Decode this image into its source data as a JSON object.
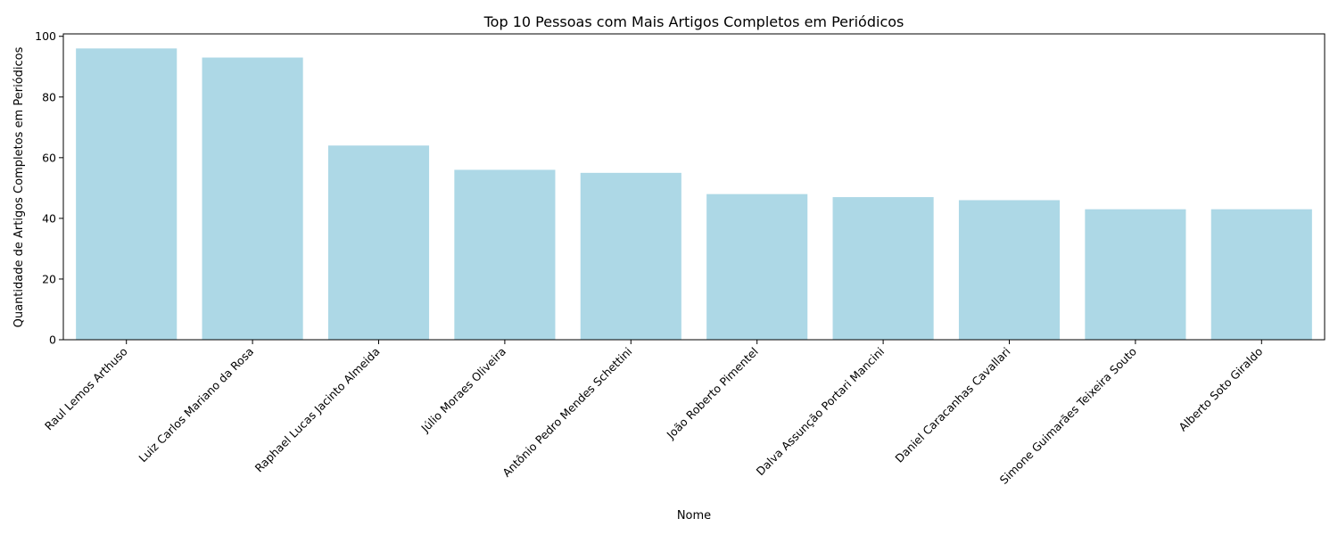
{
  "chart_data": {
    "type": "bar",
    "title": "Top 10 Pessoas com Mais Artigos Completos em Periódicos",
    "xlabel": "Nome",
    "ylabel": "Quantidade de Artigos Completos em Periódicos",
    "categories": [
      "Raul Lemos Arthuso",
      "Luiz Carlos Mariano da Rosa",
      "Raphael Lucas Jacinto Almeida",
      "Júlio Moraes Oliveira",
      "Antônio Pedro Mendes Schettini",
      "João Roberto Pimentel",
      "Dalva Assunção Portari Mancini",
      "Daniel Caracanhas Cavallari",
      "Simone Guimarães Teixeira Souto",
      "Alberto Soto Giraldo"
    ],
    "values": [
      96,
      93,
      64,
      56,
      55,
      48,
      47,
      46,
      43,
      43
    ],
    "ylim": [
      0,
      100.8
    ],
    "yticks": [
      0,
      20,
      40,
      60,
      80,
      100
    ],
    "bar_color": "#add8e6",
    "grid": false,
    "legend": "none"
  }
}
